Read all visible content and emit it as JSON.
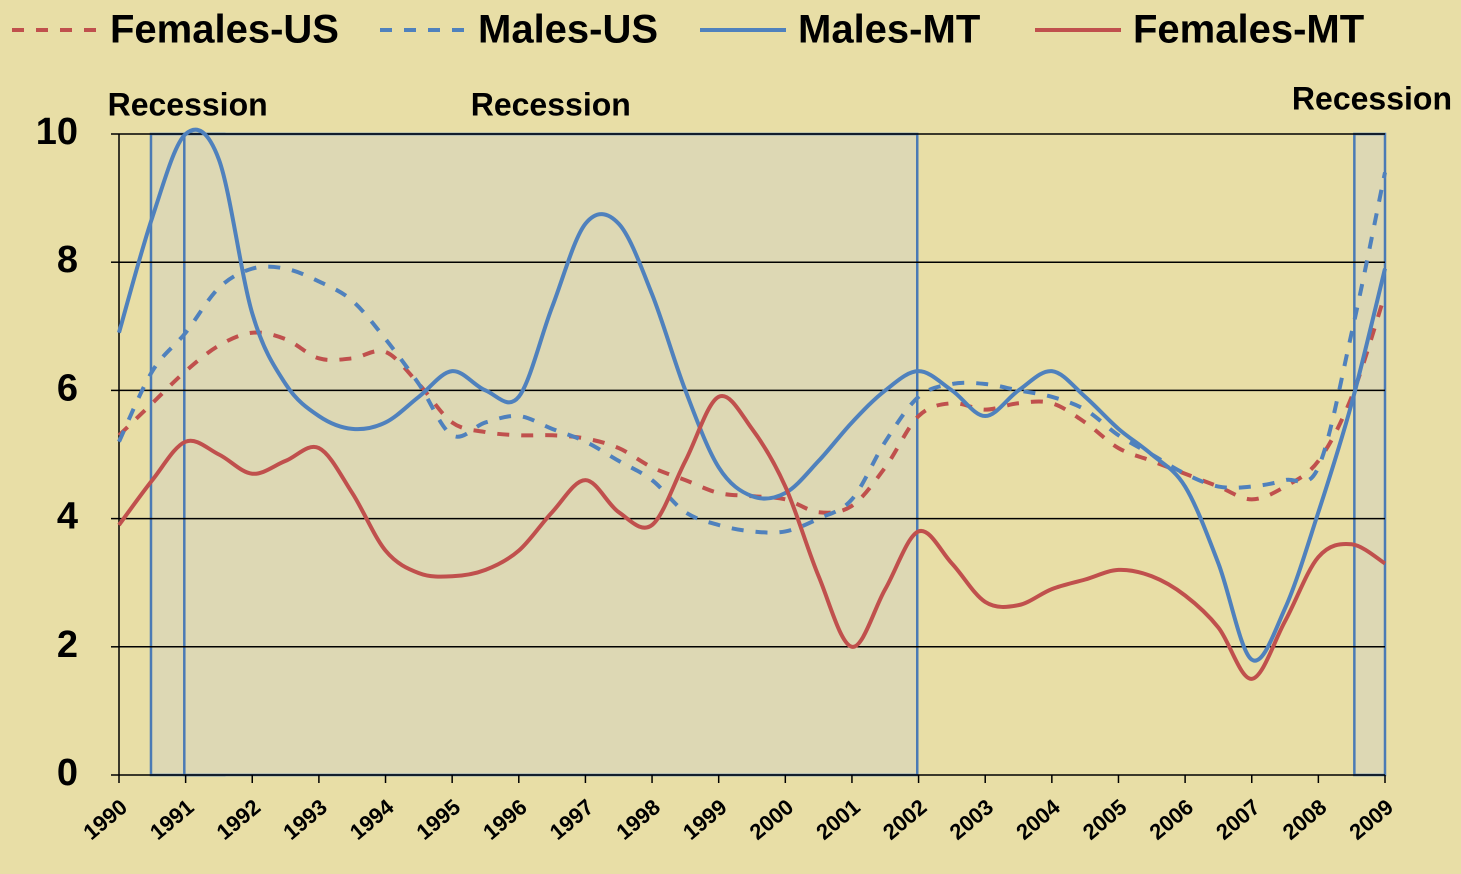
{
  "chart_data": {
    "type": "line",
    "x": [
      1990,
      1990.5,
      1991,
      1991.5,
      1992,
      1992.5,
      1993,
      1993.5,
      1994,
      1994.5,
      1995,
      1995.5,
      1996,
      1996.5,
      1997,
      1997.5,
      1998,
      1998.5,
      1999,
      1999.5,
      2000,
      2000.5,
      2001,
      2001.5,
      2002,
      2002.5,
      2003,
      2003.5,
      2004,
      2004.5,
      2005,
      2005.5,
      2006,
      2006.5,
      2007,
      2007.5,
      2008,
      2008.5,
      2009
    ],
    "xlim": [
      1990,
      2009
    ],
    "xticks": [
      1990,
      1991,
      1992,
      1993,
      1994,
      1995,
      1996,
      1997,
      1998,
      1999,
      2000,
      2001,
      2002,
      2003,
      2004,
      2005,
      2006,
      2007,
      2008,
      2009
    ],
    "ylim": [
      0,
      10
    ],
    "yticks": [
      0,
      2,
      4,
      6,
      8,
      10
    ],
    "grid": true,
    "legend": "top",
    "recessions": [
      {
        "label": "Recession",
        "range": [
          1990.48,
          1991.58
        ]
      },
      {
        "label": "Recession",
        "range": [
          1990.98,
          2001.98
        ]
      },
      {
        "label": "Recession",
        "range": [
          2008.54,
          2009.0
        ]
      }
    ],
    "series": [
      {
        "name": "Females-US",
        "color": "#c0504d",
        "dash": true,
        "values": [
          5.3,
          5.8,
          6.3,
          6.7,
          6.9,
          6.8,
          6.5,
          6.5,
          6.6,
          6.1,
          5.5,
          5.35,
          5.3,
          5.3,
          5.25,
          5.1,
          4.8,
          4.6,
          4.4,
          4.35,
          4.3,
          4.1,
          4.2,
          4.8,
          5.6,
          5.8,
          5.7,
          5.8,
          5.8,
          5.5,
          5.1,
          4.9,
          4.7,
          4.5,
          4.3,
          4.5,
          4.9,
          5.9,
          7.5
        ]
      },
      {
        "name": "Males-US",
        "color": "#4f81bd",
        "dash": true,
        "values": [
          5.2,
          6.3,
          6.9,
          7.6,
          7.9,
          7.9,
          7.7,
          7.4,
          6.8,
          6.1,
          5.3,
          5.5,
          5.6,
          5.4,
          5.2,
          4.9,
          4.6,
          4.1,
          3.9,
          3.8,
          3.8,
          4.0,
          4.3,
          5.2,
          5.9,
          6.1,
          6.1,
          6.0,
          5.9,
          5.7,
          5.3,
          5.0,
          4.7,
          4.5,
          4.5,
          4.6,
          4.8,
          6.9,
          9.4
        ]
      },
      {
        "name": "Males-MT",
        "color": "#4f81bd",
        "dash": false,
        "values": [
          6.9,
          8.7,
          10.0,
          9.6,
          7.2,
          6.1,
          5.6,
          5.4,
          5.5,
          5.9,
          6.3,
          6.0,
          5.9,
          7.3,
          8.6,
          8.6,
          7.5,
          6.0,
          4.8,
          4.35,
          4.4,
          4.9,
          5.5,
          6.0,
          6.3,
          6.0,
          5.6,
          6.0,
          6.3,
          5.9,
          5.4,
          5.0,
          4.5,
          3.3,
          1.8,
          2.6,
          4.1,
          5.8,
          7.9
        ]
      },
      {
        "name": "Females-MT",
        "color": "#c0504d",
        "dash": false,
        "values": [
          3.9,
          4.6,
          5.2,
          5.0,
          4.7,
          4.9,
          5.1,
          4.4,
          3.5,
          3.15,
          3.1,
          3.2,
          3.5,
          4.1,
          4.6,
          4.1,
          3.9,
          4.9,
          5.9,
          5.4,
          4.5,
          3.1,
          2.0,
          2.9,
          3.8,
          3.3,
          2.7,
          2.65,
          2.9,
          3.05,
          3.2,
          3.1,
          2.8,
          2.3,
          1.5,
          2.4,
          3.4,
          3.6,
          3.3
        ]
      }
    ]
  }
}
